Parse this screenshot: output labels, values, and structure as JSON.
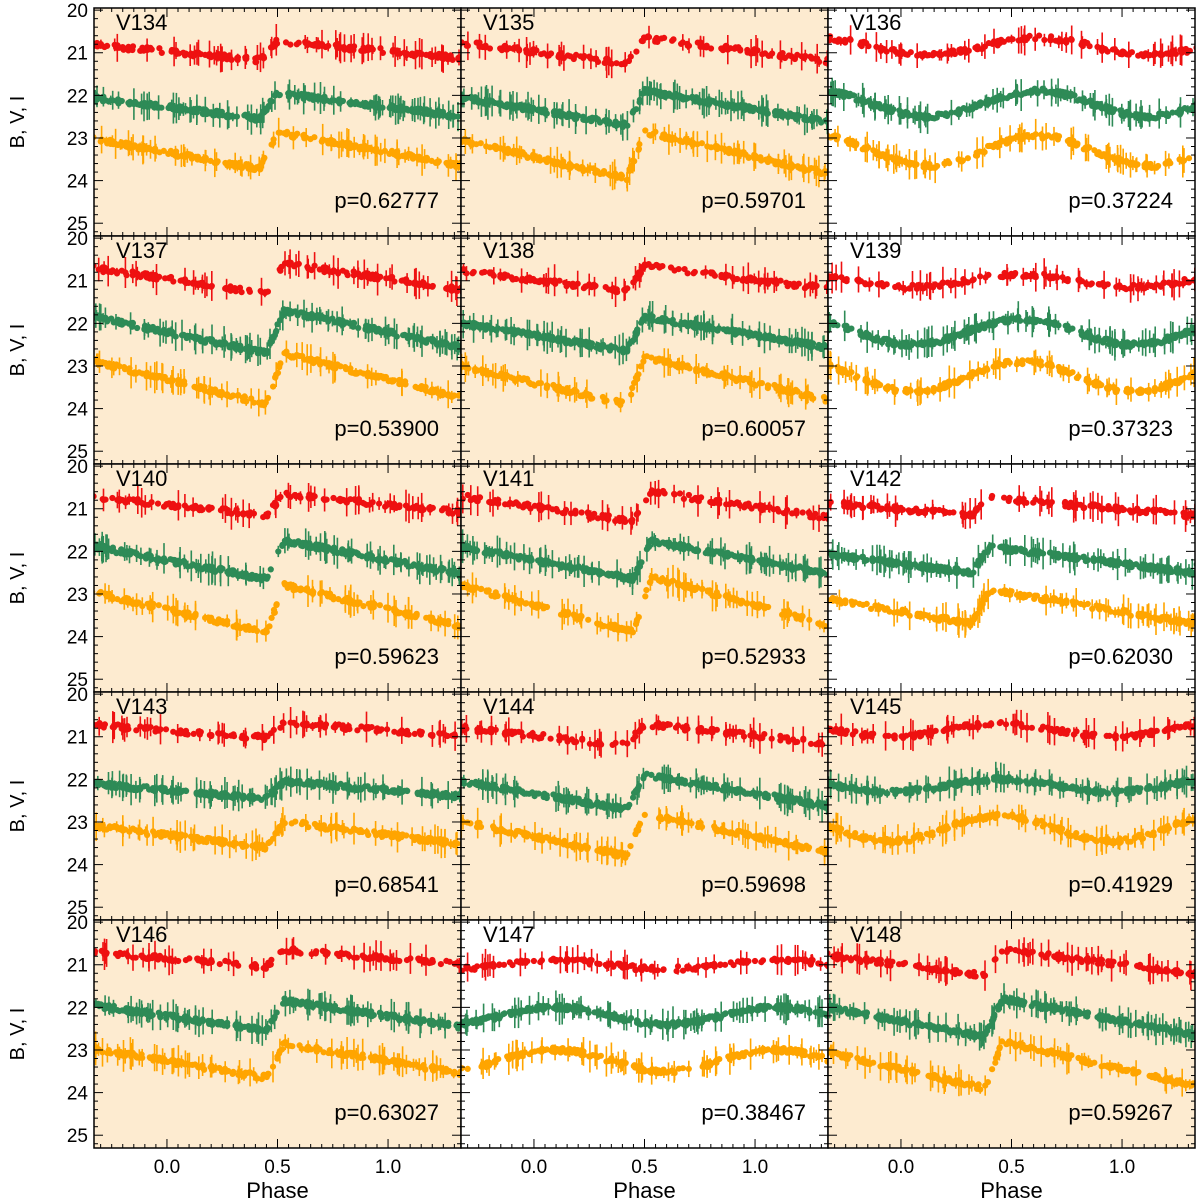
{
  "colors": {
    "I": "#ee1111",
    "V": "#2e8b57",
    "B": "#ffa500",
    "shaded_bg": "#fdebd0",
    "plain_bg": "#ffffff"
  },
  "chart_data": {
    "type": "scatter",
    "description": "Phased light curves of RR Lyrae variables in three bands (I top, V middle, B bottom)",
    "xlabel": "Phase",
    "ylabel": "B, V, I",
    "xlim": [
      -0.33,
      1.33
    ],
    "ylim": [
      25.3,
      19.95
    ],
    "xticks": [
      0.0,
      0.5,
      1.0
    ],
    "xtick_labels": [
      "0.0",
      "0.5",
      "1.0"
    ],
    "yticks": [
      20,
      21,
      22,
      23,
      24,
      25
    ],
    "ytick_labels": [
      "20",
      "21",
      "22",
      "23",
      "24",
      "25"
    ],
    "series_names": [
      "I",
      "V",
      "B"
    ],
    "panels": [
      {
        "name": "V134",
        "period_label": "p=0.62777",
        "shaded": true,
        "kind": "ab",
        "mean": {
          "I": 20.95,
          "V": 22.25,
          "B": 23.3
        },
        "amp": {
          "I": 0.45,
          "V": 0.6,
          "B": 0.85
        },
        "rise": 0.42
      },
      {
        "name": "V135",
        "period_label": "p=0.59701",
        "shaded": true,
        "kind": "ab",
        "mean": {
          "I": 20.95,
          "V": 22.3,
          "B": 23.4
        },
        "amp": {
          "I": 0.6,
          "V": 0.8,
          "B": 1.1
        },
        "rise": 0.42
      },
      {
        "name": "V136",
        "period_label": "p=0.37224",
        "shaded": false,
        "kind": "c",
        "mean": {
          "I": 20.85,
          "V": 22.2,
          "B": 23.3
        },
        "amp": {
          "I": 0.4,
          "V": 0.6,
          "B": 0.7
        },
        "rise": 0.62
      },
      {
        "name": "V137",
        "period_label": "p=0.53900",
        "shaded": true,
        "kind": "ab",
        "mean": {
          "I": 20.95,
          "V": 22.2,
          "B": 23.3
        },
        "amp": {
          "I": 0.7,
          "V": 1.0,
          "B": 1.2
        },
        "rise": 0.45
      },
      {
        "name": "V138",
        "period_label": "p=0.60057",
        "shaded": true,
        "kind": "ab",
        "mean": {
          "I": 20.95,
          "V": 22.25,
          "B": 23.35
        },
        "amp": {
          "I": 0.6,
          "V": 0.8,
          "B": 1.1
        },
        "rise": 0.42
      },
      {
        "name": "V139",
        "period_label": "p=0.37323",
        "shaded": false,
        "kind": "c",
        "mean": {
          "I": 21.0,
          "V": 22.2,
          "B": 23.25
        },
        "amp": {
          "I": 0.3,
          "V": 0.6,
          "B": 0.7
        },
        "rise": 0.55
      },
      {
        "name": "V140",
        "period_label": "p=0.59623",
        "shaded": true,
        "kind": "ab",
        "mean": {
          "I": 20.9,
          "V": 22.2,
          "B": 23.35
        },
        "amp": {
          "I": 0.5,
          "V": 0.9,
          "B": 1.1
        },
        "rise": 0.45
      },
      {
        "name": "V141",
        "period_label": "p=0.52933",
        "shaded": true,
        "kind": "ab",
        "mean": {
          "I": 20.95,
          "V": 22.2,
          "B": 23.25
        },
        "amp": {
          "I": 0.7,
          "V": 0.9,
          "B": 1.3
        },
        "rise": 0.45
      },
      {
        "name": "V142",
        "period_label": "p=0.62030",
        "shaded": false,
        "kind": "ab",
        "mean": {
          "I": 20.95,
          "V": 22.2,
          "B": 23.3
        },
        "amp": {
          "I": 0.4,
          "V": 0.6,
          "B": 0.8
        },
        "rise": 0.32
      },
      {
        "name": "V143",
        "period_label": "p=0.68541",
        "shaded": true,
        "kind": "ab",
        "mean": {
          "I": 20.85,
          "V": 22.25,
          "B": 23.3
        },
        "amp": {
          "I": 0.35,
          "V": 0.4,
          "B": 0.6
        },
        "rise": 0.45
      },
      {
        "name": "V144",
        "period_label": "p=0.59698",
        "shaded": true,
        "kind": "ab",
        "mean": {
          "I": 20.95,
          "V": 22.3,
          "B": 23.3
        },
        "amp": {
          "I": 0.5,
          "V": 0.8,
          "B": 1.0
        },
        "rise": 0.42
      },
      {
        "name": "V145",
        "period_label": "p=0.41929",
        "shaded": true,
        "kind": "c",
        "mean": {
          "I": 20.85,
          "V": 22.15,
          "B": 23.15
        },
        "amp": {
          "I": 0.3,
          "V": 0.3,
          "B": 0.6
        },
        "rise": 0.45
      },
      {
        "name": "V146",
        "period_label": "p=0.63027",
        "shaded": true,
        "kind": "ab",
        "mean": {
          "I": 20.85,
          "V": 22.2,
          "B": 23.25
        },
        "amp": {
          "I": 0.4,
          "V": 0.7,
          "B": 0.8
        },
        "rise": 0.45
      },
      {
        "name": "V147",
        "period_label": "p=0.38467",
        "shaded": false,
        "kind": "c",
        "mean": {
          "I": 21.0,
          "V": 22.2,
          "B": 23.25
        },
        "amp": {
          "I": 0.2,
          "V": 0.4,
          "B": 0.5
        },
        "rise": 0.1
      },
      {
        "name": "V148",
        "period_label": "p=0.59267",
        "shaded": true,
        "kind": "ab",
        "mean": {
          "I": 20.95,
          "V": 22.25,
          "B": 23.35
        },
        "amp": {
          "I": 0.6,
          "V": 0.9,
          "B": 1.1
        },
        "rise": 0.38
      }
    ]
  }
}
